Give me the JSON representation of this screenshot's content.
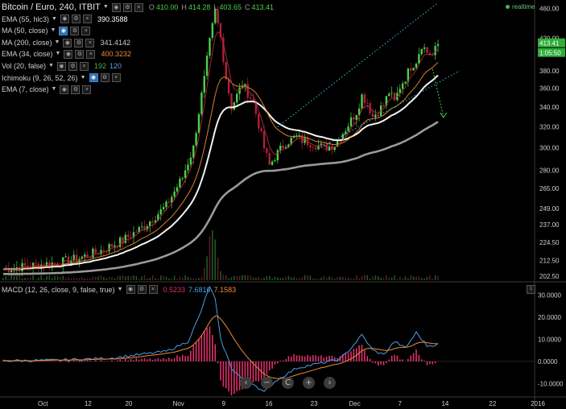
{
  "legend": {
    "title": "Bitcoin / Euro, 240, ITBIT",
    "rows": [
      {
        "label": "EMA (55, hlc3)",
        "value": "390.3588",
        "value_color": "#ffffff",
        "value2": "",
        "value2_color": "",
        "eye_blue": false
      },
      {
        "label": "MA (50, close)",
        "value": "",
        "value_color": "",
        "value2": "",
        "value2_color": "",
        "eye_blue": true
      },
      {
        "label": "MA (200, close)",
        "value": "341.4142",
        "value_color": "#c8c8c8",
        "value2": "",
        "value2_color": "",
        "eye_blue": false
      },
      {
        "label": "EMA (34, close)",
        "value": "400.3232",
        "value_color": "#f08a38",
        "value2": "",
        "value2_color": "",
        "eye_blue": false
      },
      {
        "label": "Vol (20, false)",
        "value": "192",
        "value_color": "#4caf50",
        "value2": "120",
        "value2_color": "#5aa0e0",
        "eye_blue": false
      },
      {
        "label": "Ichimoku (9, 26, 52, 26)",
        "value": "",
        "value_color": "",
        "value2": "",
        "value2_color": "",
        "eye_blue": true
      },
      {
        "label": "EMA (7, close)",
        "value": "",
        "value_color": "",
        "value2": "",
        "value2_color": "",
        "eye_blue": false
      }
    ],
    "ohlc": {
      "o_label": "O",
      "o": "410.00",
      "h_label": "H",
      "h": "414.28",
      "l_label": "L",
      "l": "403.65",
      "c_label": "C",
      "c": "413.41"
    },
    "realtime": "realtime"
  },
  "macd_legend": {
    "label": "MACD (12, 26, close, 9, false, true)",
    "v1": "0.5233",
    "v1_color": "#e0306a",
    "v2": "7.6816",
    "v2_color": "#4a9ee8",
    "v3": "7.1583",
    "v3_color": "#f08a38"
  },
  "pane_close_label": "1",
  "nav": {
    "left": "‹",
    "zoom_out": "−",
    "reset": "C",
    "zoom_in": "+",
    "right": "›"
  },
  "price_badges": {
    "current": "413.41",
    "countdown": "1:05:50"
  },
  "colors": {
    "up": "#4ccf4c",
    "down": "#b0203a",
    "ema_white": "#f2f2f2",
    "ma200": "#9a9a9a",
    "ema34": "#f08a38",
    "ema7": "#b02a3a",
    "channel": "#3ac0d8",
    "arrow": "#42d65a",
    "hist": "#e0306a",
    "macd_line": "#4a9ee8",
    "signal_line": "#f08a38"
  },
  "chart_data": [
    {
      "type": "candlestick",
      "title": "Bitcoin / Euro, 240, ITBIT",
      "y_ticks": [
        "460.00",
        "420.00",
        "380.00",
        "360.00",
        "340.00",
        "320.00",
        "300.00",
        "280.00",
        "265.00",
        "249.00",
        "237.00",
        "224.50",
        "212.50",
        "202.50"
      ],
      "ylim": [
        200,
        465
      ],
      "y_scale": "log",
      "x_ticks": [
        "Oct",
        "12",
        "20",
        "Nov",
        "9",
        "16",
        "23",
        "Dec",
        "7",
        "14",
        "22",
        "2016"
      ],
      "price_path": [
        [
          0,
          207
        ],
        [
          5,
          209
        ],
        [
          10,
          211
        ],
        [
          14,
          214
        ],
        [
          18,
          219
        ],
        [
          22,
          226
        ],
        [
          26,
          236
        ],
        [
          30,
          251
        ],
        [
          33,
          274
        ],
        [
          35,
          300
        ],
        [
          36,
          335
        ],
        [
          37,
          370
        ],
        [
          38,
          415
        ],
        [
          39,
          455
        ],
        [
          40,
          420
        ],
        [
          41,
          372
        ],
        [
          42,
          340
        ],
        [
          43,
          352
        ],
        [
          44,
          365
        ],
        [
          46,
          345
        ],
        [
          48,
          300
        ],
        [
          49,
          284
        ],
        [
          50,
          292
        ],
        [
          52,
          305
        ],
        [
          54,
          310
        ],
        [
          55,
          307
        ],
        [
          57,
          304
        ],
        [
          59,
          300
        ],
        [
          61,
          303
        ],
        [
          63,
          318
        ],
        [
          65,
          335
        ],
        [
          66,
          352
        ],
        [
          67,
          345
        ],
        [
          68,
          330
        ],
        [
          69,
          336
        ],
        [
          70,
          342
        ],
        [
          71,
          356
        ],
        [
          72,
          345
        ],
        [
          73,
          362
        ],
        [
          74,
          372
        ],
        [
          75,
          385
        ],
        [
          76,
          392
        ],
        [
          77,
          412
        ],
        [
          78,
          402
        ],
        [
          79,
          398
        ],
        [
          80,
          412
        ]
      ],
      "series": [
        {
          "name": "EMA (55, hlc3)",
          "last": 390.3588
        },
        {
          "name": "MA (200, close)",
          "last": 341.4142
        },
        {
          "name": "EMA (34, close)",
          "last": 400.3232
        }
      ],
      "last_price": 413.41,
      "ohlc": {
        "open": 410.0,
        "high": 414.28,
        "low": 403.65,
        "close": 413.41
      }
    },
    {
      "type": "line",
      "title": "MACD (12, 26, close, 9, false, true)",
      "y_ticks": [
        "30.0000",
        "20.0000",
        "10.0000",
        "0.0000",
        "-10.0000"
      ],
      "ylim": [
        -15,
        36
      ],
      "series": [
        {
          "name": "Histogram",
          "last": 0.5233
        },
        {
          "name": "MACD",
          "last": 7.6816
        },
        {
          "name": "Signal",
          "last": 7.1583
        }
      ],
      "macd_path": [
        [
          0,
          0.3
        ],
        [
          10,
          0.5
        ],
        [
          20,
          1.5
        ],
        [
          30,
          4.5
        ],
        [
          34,
          9
        ],
        [
          36,
          20
        ],
        [
          38,
          34
        ],
        [
          39,
          28
        ],
        [
          40,
          10
        ],
        [
          42,
          -3
        ],
        [
          44,
          -8
        ],
        [
          46,
          -10
        ],
        [
          48,
          -14
        ],
        [
          50,
          -9
        ],
        [
          54,
          -3
        ],
        [
          58,
          -1
        ],
        [
          62,
          1
        ],
        [
          64,
          6
        ],
        [
          66,
          12
        ],
        [
          68,
          5
        ],
        [
          70,
          3
        ],
        [
          72,
          9
        ],
        [
          74,
          6
        ],
        [
          76,
          13
        ],
        [
          78,
          7
        ],
        [
          80,
          7.7
        ]
      ]
    }
  ]
}
